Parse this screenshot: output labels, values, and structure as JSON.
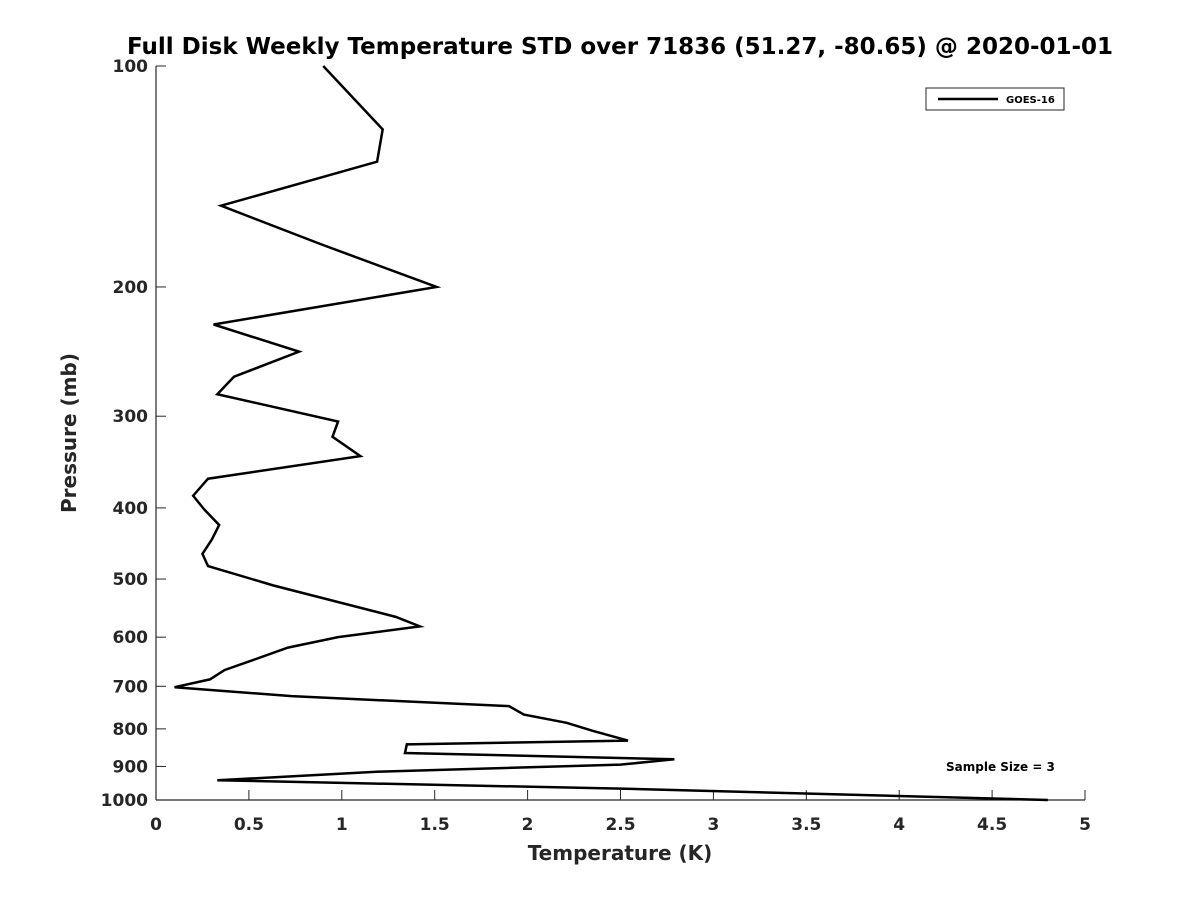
{
  "chart_data": {
    "type": "line",
    "title": "Full Disk Weekly Temperature STD over 71836 (51.27, -80.65) @ 2020-01-01",
    "xlabel": "Temperature (K)",
    "ylabel": "Pressure (mb)",
    "xlim": [
      0,
      5
    ],
    "ylim": [
      100,
      1000
    ],
    "y_scale": "log",
    "y_reversed": true,
    "grid": false,
    "legend_placement": "top-right",
    "x_ticks": [
      "0",
      "0.5",
      "1",
      "1.5",
      "2",
      "2.5",
      "3",
      "3.5",
      "4",
      "4.5",
      "5"
    ],
    "y_ticks": [
      "100",
      "200",
      "300",
      "400",
      "500",
      "600",
      "700",
      "800",
      "900",
      "1000"
    ],
    "series": [
      {
        "name": "GOES-16",
        "color": "#000000",
        "x": [
          0.9,
          1.22,
          1.19,
          0.35,
          0.89,
          1.51,
          0.31,
          0.77,
          0.42,
          0.33,
          0.98,
          0.95,
          1.1,
          0.28,
          0.2,
          0.26,
          0.34,
          0.3,
          0.25,
          0.28,
          0.63,
          0.95,
          1.29,
          1.42,
          0.98,
          0.71,
          0.52,
          0.37,
          0.29,
          0.1,
          0.73,
          1.9,
          1.98,
          2.21,
          2.35,
          2.54,
          1.35,
          1.34,
          2.79,
          2.5,
          1.2,
          0.33,
          2.5,
          4.8
        ],
        "y": [
          100,
          122,
          135,
          155,
          175,
          200,
          225,
          245,
          265,
          280,
          305,
          320,
          340,
          365,
          385,
          402,
          422,
          442,
          462,
          480,
          510,
          535,
          563,
          580,
          600,
          620,
          645,
          665,
          685,
          702,
          722,
          745,
          765,
          785,
          805,
          830,
          840,
          863,
          880,
          895,
          915,
          940,
          965,
          1000
        ]
      }
    ],
    "annotation": "Sample Size = 3"
  }
}
